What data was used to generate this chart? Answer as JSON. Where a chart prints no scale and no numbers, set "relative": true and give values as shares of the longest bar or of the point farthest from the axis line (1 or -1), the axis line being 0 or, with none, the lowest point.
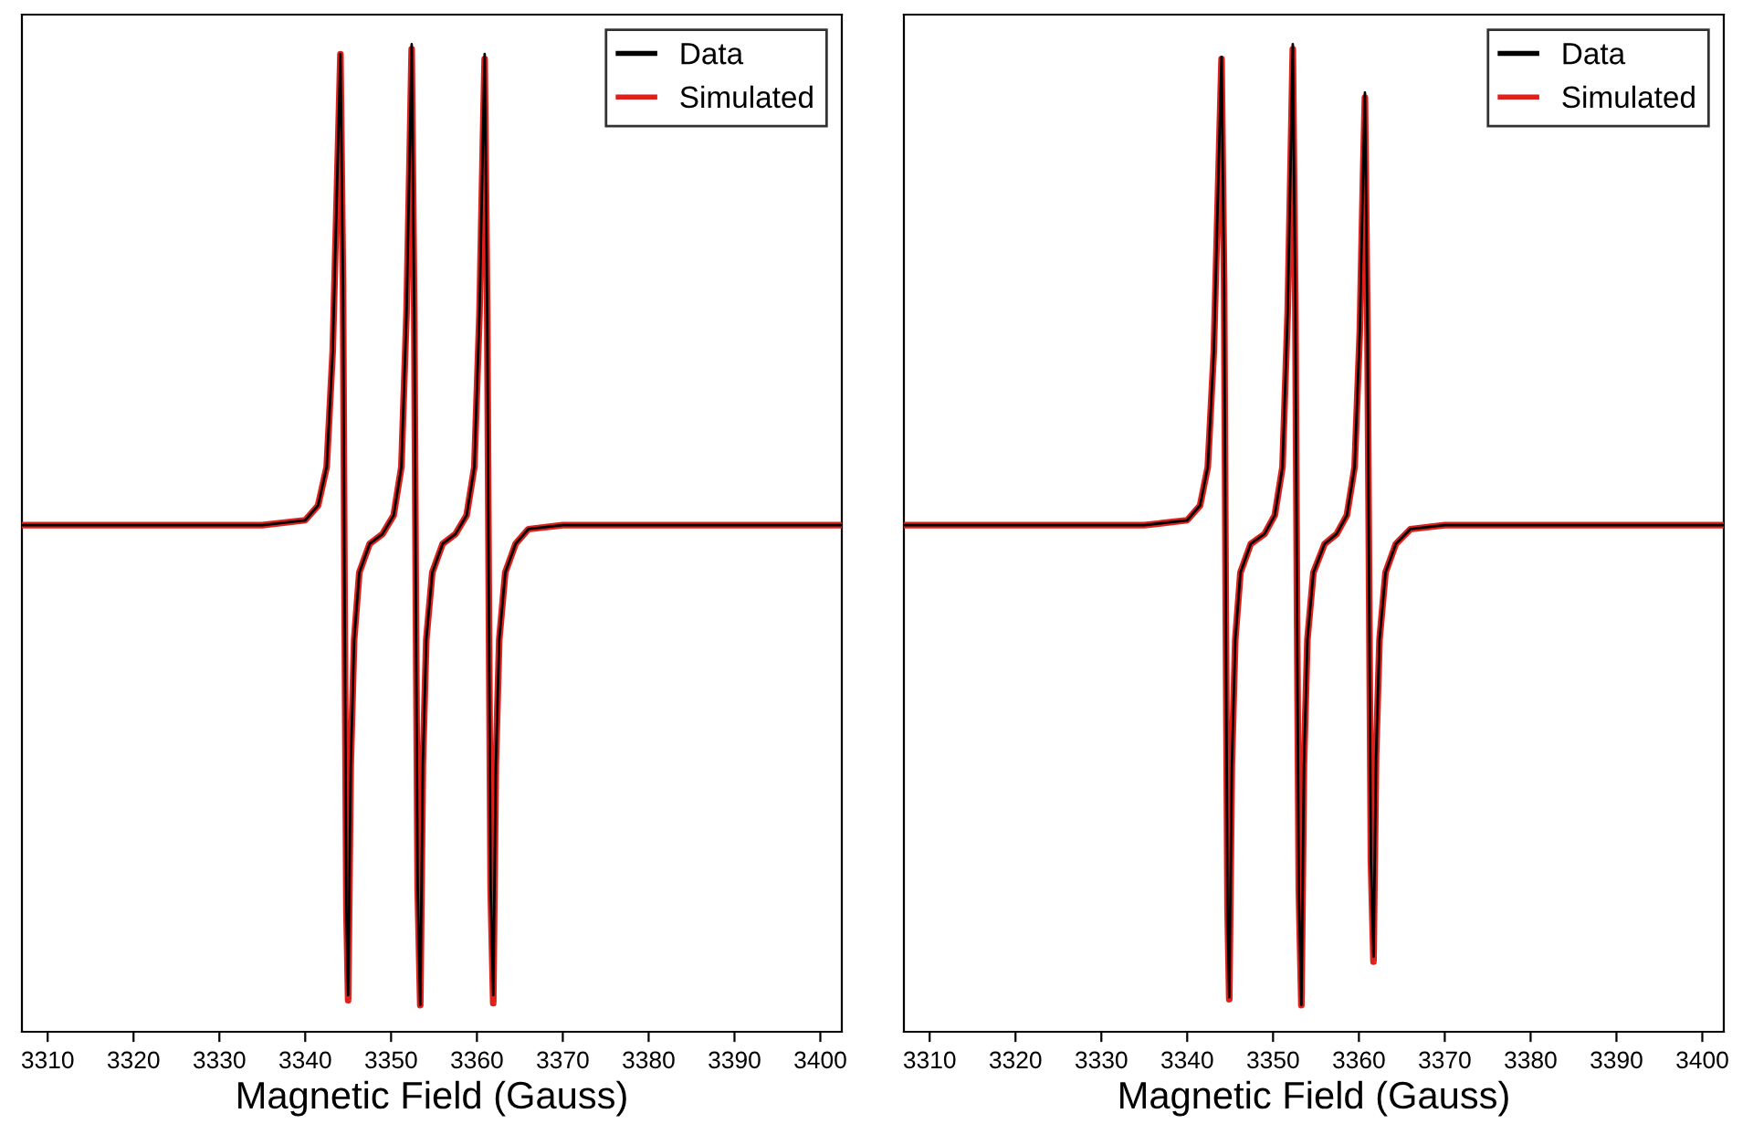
{
  "chart_data": [
    {
      "type": "line",
      "xlabel": "Magnetic Field (Gauss)",
      "relative": true,
      "xlim": [
        3307,
        3402.5
      ],
      "xticks": [
        3310,
        3320,
        3330,
        3340,
        3350,
        3360,
        3370,
        3380,
        3390,
        3400
      ],
      "tick_labels": "x",
      "legend": "top right",
      "x": [
        3307,
        3320,
        3335,
        3340,
        3341.5,
        3342.5,
        3343.2,
        3343.7,
        3344.1,
        3344.4,
        3344.6,
        3344.8,
        3345.0,
        3345.3,
        3345.7,
        3346.3,
        3347.5,
        3349,
        3350.3,
        3351.2,
        3351.8,
        3352.2,
        3352.4,
        3352.7,
        3352.9,
        3353.1,
        3353.4,
        3353.7,
        3354.1,
        3354.8,
        3356,
        3357.5,
        3358.8,
        3359.7,
        3360.3,
        3360.7,
        3360.9,
        3361.2,
        3361.4,
        3361.6,
        3361.9,
        3362.2,
        3362.6,
        3363.3,
        3364.5,
        3366,
        3370,
        3380,
        3390,
        3402.5
      ],
      "series": [
        {
          "name": "Data",
          "color": "#000000",
          "values": [
            0.513,
            0.513,
            0.513,
            0.518,
            0.533,
            0.572,
            0.689,
            0.854,
            0.99,
            0.757,
            0.416,
            0.124,
            0.037,
            0.27,
            0.397,
            0.465,
            0.494,
            0.504,
            0.523,
            0.572,
            0.728,
            0.903,
            1.0,
            0.728,
            0.416,
            0.144,
            0.027,
            0.27,
            0.397,
            0.465,
            0.494,
            0.504,
            0.523,
            0.572,
            0.728,
            0.903,
            0.99,
            0.728,
            0.416,
            0.144,
            0.037,
            0.27,
            0.397,
            0.465,
            0.494,
            0.509,
            0.513,
            0.513,
            0.513,
            0.513
          ]
        },
        {
          "name": "Simulated",
          "color": "#e0201b",
          "values": [
            0.513,
            0.513,
            0.513,
            0.518,
            0.533,
            0.572,
            0.689,
            0.854,
            0.99,
            0.757,
            0.416,
            0.124,
            0.032,
            0.27,
            0.397,
            0.465,
            0.494,
            0.504,
            0.523,
            0.572,
            0.728,
            0.903,
            0.995,
            0.728,
            0.416,
            0.144,
            0.027,
            0.27,
            0.397,
            0.465,
            0.494,
            0.504,
            0.523,
            0.572,
            0.728,
            0.903,
            0.985,
            0.728,
            0.416,
            0.144,
            0.029,
            0.27,
            0.397,
            0.465,
            0.494,
            0.509,
            0.513,
            0.513,
            0.513,
            0.513
          ]
        }
      ]
    },
    {
      "type": "line",
      "xlabel": "Magnetic Field (Gauss)",
      "relative": true,
      "xlim": [
        3307,
        3402.5
      ],
      "xticks": [
        3310,
        3320,
        3330,
        3340,
        3350,
        3360,
        3370,
        3380,
        3390,
        3400
      ],
      "tick_labels": "x",
      "legend": "top right",
      "x": [
        3307,
        3320,
        3335,
        3340,
        3341.5,
        3342.4,
        3343.1,
        3343.6,
        3344.0,
        3344.3,
        3344.5,
        3344.7,
        3344.9,
        3345.2,
        3345.6,
        3346.2,
        3347.4,
        3349,
        3350.2,
        3351.1,
        3351.7,
        3352.1,
        3352.3,
        3352.6,
        3352.8,
        3353.0,
        3353.3,
        3353.6,
        3354.0,
        3354.7,
        3356,
        3357.4,
        3358.6,
        3359.5,
        3360.1,
        3360.5,
        3360.7,
        3361.0,
        3361.2,
        3361.4,
        3361.7,
        3362.0,
        3362.4,
        3363.1,
        3364.3,
        3366,
        3370,
        3380,
        3390,
        3402.5
      ],
      "series": [
        {
          "name": "Data",
          "color": "#000000",
          "values": [
            0.513,
            0.513,
            0.513,
            0.518,
            0.533,
            0.572,
            0.689,
            0.854,
            0.987,
            0.757,
            0.416,
            0.124,
            0.035,
            0.27,
            0.397,
            0.465,
            0.494,
            0.504,
            0.523,
            0.572,
            0.728,
            0.903,
            1.0,
            0.728,
            0.416,
            0.144,
            0.027,
            0.27,
            0.397,
            0.465,
            0.494,
            0.504,
            0.523,
            0.572,
            0.708,
            0.874,
            0.951,
            0.708,
            0.436,
            0.173,
            0.076,
            0.28,
            0.397,
            0.465,
            0.494,
            0.509,
            0.513,
            0.513,
            0.513,
            0.513
          ]
        },
        {
          "name": "Simulated",
          "color": "#e0201b",
          "values": [
            0.513,
            0.513,
            0.513,
            0.518,
            0.533,
            0.572,
            0.689,
            0.854,
            0.985,
            0.757,
            0.416,
            0.124,
            0.033,
            0.27,
            0.397,
            0.465,
            0.494,
            0.504,
            0.523,
            0.572,
            0.728,
            0.903,
            0.995,
            0.728,
            0.416,
            0.144,
            0.027,
            0.27,
            0.397,
            0.465,
            0.494,
            0.504,
            0.523,
            0.572,
            0.708,
            0.874,
            0.946,
            0.708,
            0.436,
            0.173,
            0.071,
            0.28,
            0.397,
            0.465,
            0.494,
            0.509,
            0.513,
            0.513,
            0.513,
            0.513
          ]
        }
      ]
    }
  ]
}
